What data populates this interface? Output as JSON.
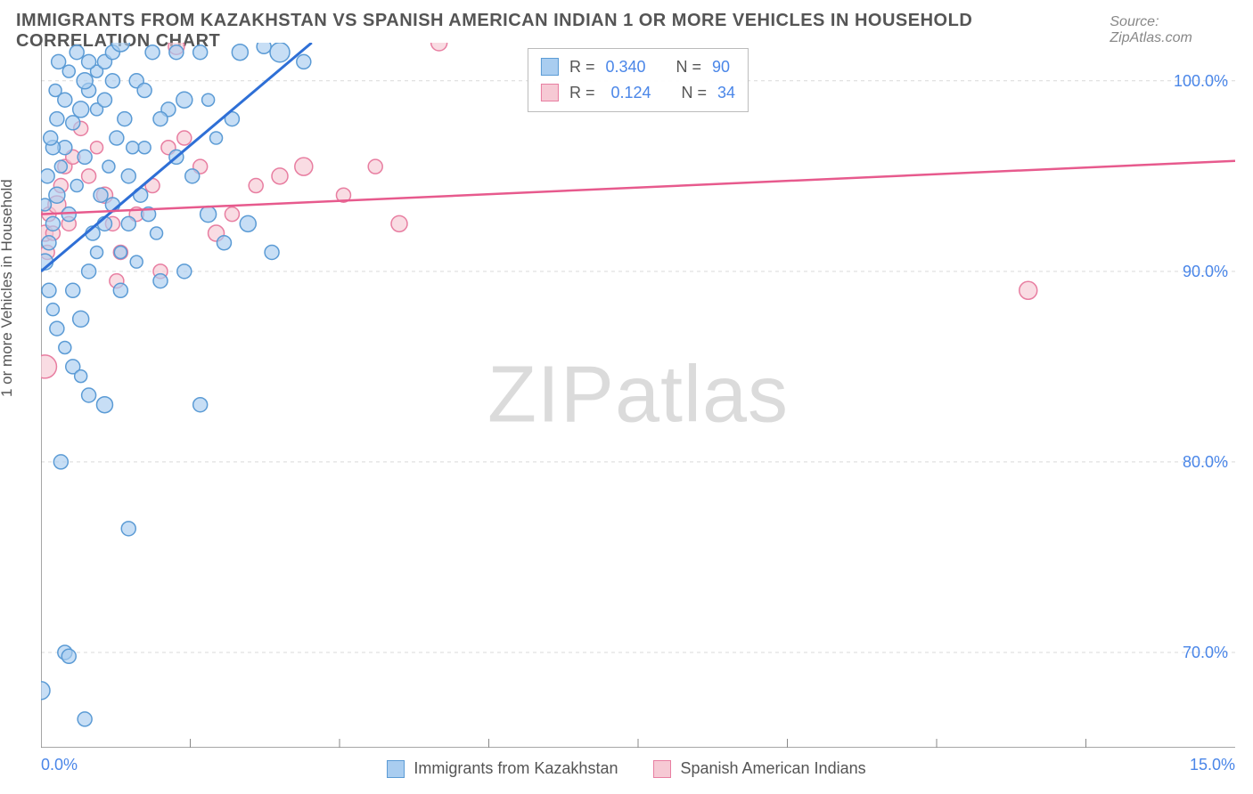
{
  "title": "IMMIGRANTS FROM KAZAKHSTAN VS SPANISH AMERICAN INDIAN 1 OR MORE VEHICLES IN HOUSEHOLD CORRELATION CHART",
  "source": "Source: ZipAtlas.com",
  "watermark_a": "ZIP",
  "watermark_b": "atlas",
  "y_axis_label": "1 or more Vehicles in Household",
  "chart": {
    "type": "scatter",
    "background_color": "#ffffff",
    "grid_color": "#d9d9d9",
    "border_color": "#888888",
    "xlim": [
      0,
      15
    ],
    "ylim": [
      65,
      102
    ],
    "x_ticks_major": [
      0,
      15
    ],
    "x_tick_labels": [
      "0.0%",
      "15.0%"
    ],
    "x_ticks_minor": [
      1.875,
      3.75,
      5.625,
      7.5,
      9.375,
      11.25,
      13.125
    ],
    "y_ticks": [
      70,
      80,
      90,
      100
    ],
    "y_tick_labels": [
      "70.0%",
      "80.0%",
      "90.0%",
      "100.0%"
    ],
    "series": [
      {
        "id": "kazakhstan",
        "label": "Immigrants from Kazakhstan",
        "color_fill": "#a9cdf0",
        "color_stroke": "#5b9bd5",
        "marker_radius": 8,
        "marker_opacity": 0.65,
        "regression": {
          "x1": 0,
          "y1": 90.0,
          "x2": 3.4,
          "y2": 102.0,
          "color": "#2e6fd6",
          "width": 3
        },
        "stats": {
          "R_label": "R =",
          "R": "0.340",
          "N_label": "N =",
          "N": "90"
        },
        "points": [
          {
            "x": 0.05,
            "y": 90.5,
            "r": 9
          },
          {
            "x": 0.1,
            "y": 91.5,
            "r": 8
          },
          {
            "x": 0.15,
            "y": 92.5,
            "r": 8
          },
          {
            "x": 0.2,
            "y": 94.0,
            "r": 9
          },
          {
            "x": 0.25,
            "y": 95.5,
            "r": 7
          },
          {
            "x": 0.3,
            "y": 96.5,
            "r": 8
          },
          {
            "x": 0.4,
            "y": 97.8,
            "r": 8
          },
          {
            "x": 0.5,
            "y": 98.5,
            "r": 9
          },
          {
            "x": 0.6,
            "y": 99.5,
            "r": 8
          },
          {
            "x": 0.7,
            "y": 100.5,
            "r": 7
          },
          {
            "x": 0.8,
            "y": 101.0,
            "r": 8
          },
          {
            "x": 0.9,
            "y": 101.5,
            "r": 8
          },
          {
            "x": 1.0,
            "y": 102.0,
            "r": 10
          },
          {
            "x": 1.2,
            "y": 100.0,
            "r": 8
          },
          {
            "x": 1.4,
            "y": 101.5,
            "r": 8
          },
          {
            "x": 1.6,
            "y": 98.5,
            "r": 8
          },
          {
            "x": 1.8,
            "y": 99.0,
            "r": 9
          },
          {
            "x": 2.0,
            "y": 101.5,
            "r": 8
          },
          {
            "x": 2.2,
            "y": 97.0,
            "r": 7
          },
          {
            "x": 2.5,
            "y": 101.5,
            "r": 9
          },
          {
            "x": 2.8,
            "y": 101.8,
            "r": 8
          },
          {
            "x": 3.0,
            "y": 101.5,
            "r": 11
          },
          {
            "x": 3.3,
            "y": 101.0,
            "r": 8
          },
          {
            "x": 0.1,
            "y": 89.0,
            "r": 8
          },
          {
            "x": 0.15,
            "y": 88.0,
            "r": 7
          },
          {
            "x": 0.2,
            "y": 87.0,
            "r": 8
          },
          {
            "x": 0.3,
            "y": 86.0,
            "r": 7
          },
          {
            "x": 0.4,
            "y": 85.0,
            "r": 8
          },
          {
            "x": 0.5,
            "y": 84.5,
            "r": 7
          },
          {
            "x": 0.6,
            "y": 83.5,
            "r": 8
          },
          {
            "x": 0.8,
            "y": 83.0,
            "r": 9
          },
          {
            "x": 0.25,
            "y": 80.0,
            "r": 8
          },
          {
            "x": 0.35,
            "y": 93.0,
            "r": 8
          },
          {
            "x": 0.45,
            "y": 94.5,
            "r": 7
          },
          {
            "x": 0.55,
            "y": 96.0,
            "r": 8
          },
          {
            "x": 0.65,
            "y": 92.0,
            "r": 8
          },
          {
            "x": 0.75,
            "y": 94.0,
            "r": 8
          },
          {
            "x": 0.85,
            "y": 95.5,
            "r": 7
          },
          {
            "x": 0.95,
            "y": 97.0,
            "r": 8
          },
          {
            "x": 1.1,
            "y": 95.0,
            "r": 8
          },
          {
            "x": 1.3,
            "y": 96.5,
            "r": 7
          },
          {
            "x": 1.5,
            "y": 98.0,
            "r": 8
          },
          {
            "x": 1.7,
            "y": 96.0,
            "r": 8
          },
          {
            "x": 1.9,
            "y": 95.0,
            "r": 8
          },
          {
            "x": 2.1,
            "y": 93.0,
            "r": 9
          },
          {
            "x": 2.3,
            "y": 91.5,
            "r": 8
          },
          {
            "x": 2.6,
            "y": 92.5,
            "r": 9
          },
          {
            "x": 2.9,
            "y": 91.0,
            "r": 8
          },
          {
            "x": 1.2,
            "y": 90.5,
            "r": 7
          },
          {
            "x": 1.5,
            "y": 89.5,
            "r": 8
          },
          {
            "x": 1.8,
            "y": 90.0,
            "r": 8
          },
          {
            "x": 2.0,
            "y": 83.0,
            "r": 8
          },
          {
            "x": 0.15,
            "y": 96.5,
            "r": 8
          },
          {
            "x": 0.2,
            "y": 98.0,
            "r": 8
          },
          {
            "x": 0.3,
            "y": 99.0,
            "r": 8
          },
          {
            "x": 0.35,
            "y": 100.5,
            "r": 7
          },
          {
            "x": 0.45,
            "y": 101.5,
            "r": 8
          },
          {
            "x": 0.55,
            "y": 100.0,
            "r": 9
          },
          {
            "x": 0.6,
            "y": 101.0,
            "r": 8
          },
          {
            "x": 0.7,
            "y": 98.5,
            "r": 7
          },
          {
            "x": 0.8,
            "y": 99.0,
            "r": 8
          },
          {
            "x": 0.9,
            "y": 100.0,
            "r": 8
          },
          {
            "x": 1.05,
            "y": 98.0,
            "r": 8
          },
          {
            "x": 1.15,
            "y": 96.5,
            "r": 7
          },
          {
            "x": 1.25,
            "y": 94.0,
            "r": 8
          },
          {
            "x": 1.35,
            "y": 93.0,
            "r": 8
          },
          {
            "x": 1.45,
            "y": 92.0,
            "r": 7
          },
          {
            "x": 1.0,
            "y": 89.0,
            "r": 8
          },
          {
            "x": 0.5,
            "y": 87.5,
            "r": 9
          },
          {
            "x": 0.4,
            "y": 89.0,
            "r": 8
          },
          {
            "x": 0.6,
            "y": 90.0,
            "r": 8
          },
          {
            "x": 0.7,
            "y": 91.0,
            "r": 7
          },
          {
            "x": 0.8,
            "y": 92.5,
            "r": 8
          },
          {
            "x": 0.9,
            "y": 93.5,
            "r": 8
          },
          {
            "x": 1.0,
            "y": 91.0,
            "r": 7
          },
          {
            "x": 1.1,
            "y": 92.5,
            "r": 8
          },
          {
            "x": 1.3,
            "y": 99.5,
            "r": 8
          },
          {
            "x": 1.7,
            "y": 101.5,
            "r": 8
          },
          {
            "x": 2.1,
            "y": 99.0,
            "r": 7
          },
          {
            "x": 2.4,
            "y": 98.0,
            "r": 8
          },
          {
            "x": 1.1,
            "y": 76.5,
            "r": 8
          },
          {
            "x": 0.3,
            "y": 70.0,
            "r": 8
          },
          {
            "x": 0.35,
            "y": 69.8,
            "r": 8
          },
          {
            "x": 0.55,
            "y": 66.5,
            "r": 8
          },
          {
            "x": 0.0,
            "y": 68.0,
            "r": 10
          },
          {
            "x": 0.05,
            "y": 93.5,
            "r": 7
          },
          {
            "x": 0.08,
            "y": 95.0,
            "r": 8
          },
          {
            "x": 0.12,
            "y": 97.0,
            "r": 8
          },
          {
            "x": 0.18,
            "y": 99.5,
            "r": 7
          },
          {
            "x": 0.22,
            "y": 101.0,
            "r": 8
          }
        ]
      },
      {
        "id": "spanish",
        "label": "Spanish American Indians",
        "color_fill": "#f6c9d4",
        "color_stroke": "#e87ea1",
        "marker_radius": 8,
        "marker_opacity": 0.65,
        "regression": {
          "x1": 0,
          "y1": 93.0,
          "x2": 15,
          "y2": 95.8,
          "color": "#e75a8d",
          "width": 2.5
        },
        "stats": {
          "R_label": "R =",
          "R": "0.124",
          "N_label": "N =",
          "N": "34"
        },
        "points": [
          {
            "x": 0.05,
            "y": 92.0,
            "r": 9
          },
          {
            "x": 0.1,
            "y": 93.0,
            "r": 8
          },
          {
            "x": 0.2,
            "y": 93.5,
            "r": 10
          },
          {
            "x": 0.25,
            "y": 94.5,
            "r": 8
          },
          {
            "x": 0.3,
            "y": 95.5,
            "r": 8
          },
          {
            "x": 0.4,
            "y": 96.0,
            "r": 8
          },
          {
            "x": 0.5,
            "y": 97.5,
            "r": 8
          },
          {
            "x": 0.6,
            "y": 95.0,
            "r": 8
          },
          {
            "x": 0.7,
            "y": 96.5,
            "r": 7
          },
          {
            "x": 0.8,
            "y": 94.0,
            "r": 9
          },
          {
            "x": 0.9,
            "y": 92.5,
            "r": 8
          },
          {
            "x": 1.0,
            "y": 91.0,
            "r": 8
          },
          {
            "x": 1.2,
            "y": 93.0,
            "r": 8
          },
          {
            "x": 1.4,
            "y": 94.5,
            "r": 8
          },
          {
            "x": 1.6,
            "y": 96.5,
            "r": 8
          },
          {
            "x": 1.8,
            "y": 97.0,
            "r": 8
          },
          {
            "x": 1.7,
            "y": 101.8,
            "r": 9
          },
          {
            "x": 2.0,
            "y": 95.5,
            "r": 8
          },
          {
            "x": 2.2,
            "y": 92.0,
            "r": 9
          },
          {
            "x": 2.4,
            "y": 93.0,
            "r": 8
          },
          {
            "x": 2.7,
            "y": 94.5,
            "r": 8
          },
          {
            "x": 3.0,
            "y": 95.0,
            "r": 9
          },
          {
            "x": 3.3,
            "y": 95.5,
            "r": 10
          },
          {
            "x": 3.8,
            "y": 94.0,
            "r": 8
          },
          {
            "x": 4.2,
            "y": 95.5,
            "r": 8
          },
          {
            "x": 4.5,
            "y": 92.5,
            "r": 9
          },
          {
            "x": 5.0,
            "y": 102.0,
            "r": 9
          },
          {
            "x": 0.95,
            "y": 89.5,
            "r": 8
          },
          {
            "x": 0.05,
            "y": 85.0,
            "r": 13
          },
          {
            "x": 1.5,
            "y": 90.0,
            "r": 8
          },
          {
            "x": 12.4,
            "y": 89.0,
            "r": 10
          },
          {
            "x": 0.08,
            "y": 91.0,
            "r": 8
          },
          {
            "x": 0.15,
            "y": 92.0,
            "r": 8
          },
          {
            "x": 0.35,
            "y": 92.5,
            "r": 8
          }
        ]
      }
    ]
  },
  "legend_bottom": [
    {
      "swatch_fill": "#a9cdf0",
      "swatch_stroke": "#5b9bd5",
      "label": "Immigrants from Kazakhstan"
    },
    {
      "swatch_fill": "#f6c9d4",
      "swatch_stroke": "#e87ea1",
      "label": "Spanish American Indians"
    }
  ]
}
